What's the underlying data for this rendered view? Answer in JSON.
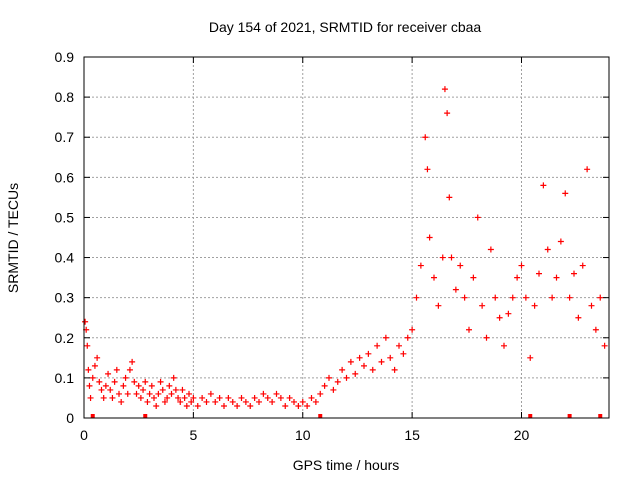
{
  "chart_data": {
    "type": "scatter",
    "title": "Day 154 of 2021, SRMTID for receiver cbaa",
    "xlabel": "GPS time / hours",
    "ylabel": "SRMTID / TECUs",
    "xlim": [
      0,
      24
    ],
    "ylim": [
      0,
      0.9
    ],
    "xticks": [
      0,
      5,
      10,
      15,
      20
    ],
    "xtick_labels": [
      "0",
      "5",
      "10",
      "15",
      "20"
    ],
    "yticks": [
      0,
      0.1,
      0.2,
      0.3,
      0.4,
      0.5,
      0.6,
      0.7,
      0.8,
      0.9
    ],
    "ytick_labels": [
      "0",
      "0.1",
      "0.2",
      "0.3",
      "0.4",
      "0.5",
      "0.6",
      "0.7",
      "0.8",
      "0.9"
    ],
    "grid": true,
    "marker": "+",
    "color": "#ff0000",
    "series": [
      {
        "name": "SRMTID",
        "points": [
          [
            0.05,
            0.24
          ],
          [
            0.1,
            0.22
          ],
          [
            0.15,
            0.18
          ],
          [
            0.2,
            0.12
          ],
          [
            0.25,
            0.08
          ],
          [
            0.3,
            0.05
          ],
          [
            0.4,
            0.1
          ],
          [
            0.5,
            0.13
          ],
          [
            0.6,
            0.15
          ],
          [
            0.7,
            0.09
          ],
          [
            0.8,
            0.07
          ],
          [
            0.9,
            0.05
          ],
          [
            1.0,
            0.08
          ],
          [
            1.1,
            0.11
          ],
          [
            1.2,
            0.07
          ],
          [
            1.3,
            0.05
          ],
          [
            1.4,
            0.09
          ],
          [
            1.5,
            0.12
          ],
          [
            1.6,
            0.06
          ],
          [
            1.7,
            0.04
          ],
          [
            1.8,
            0.08
          ],
          [
            1.9,
            0.1
          ],
          [
            2.0,
            0.06
          ],
          [
            2.1,
            0.12
          ],
          [
            2.2,
            0.14
          ],
          [
            2.3,
            0.09
          ],
          [
            2.4,
            0.06
          ],
          [
            2.5,
            0.08
          ],
          [
            2.6,
            0.05
          ],
          [
            2.7,
            0.07
          ],
          [
            2.8,
            0.09
          ],
          [
            2.9,
            0.04
          ],
          [
            3.0,
            0.06
          ],
          [
            3.1,
            0.08
          ],
          [
            3.2,
            0.05
          ],
          [
            3.3,
            0.03
          ],
          [
            3.4,
            0.06
          ],
          [
            3.5,
            0.09
          ],
          [
            3.6,
            0.07
          ],
          [
            3.7,
            0.04
          ],
          [
            3.8,
            0.05
          ],
          [
            3.9,
            0.08
          ],
          [
            4.0,
            0.06
          ],
          [
            4.1,
            0.1
          ],
          [
            4.2,
            0.07
          ],
          [
            4.3,
            0.05
          ],
          [
            4.4,
            0.04
          ],
          [
            4.5,
            0.07
          ],
          [
            4.6,
            0.05
          ],
          [
            4.7,
            0.03
          ],
          [
            4.8,
            0.06
          ],
          [
            4.9,
            0.04
          ],
          [
            5.0,
            0.05
          ],
          [
            5.2,
            0.03
          ],
          [
            5.4,
            0.05
          ],
          [
            5.6,
            0.04
          ],
          [
            5.8,
            0.06
          ],
          [
            6.0,
            0.04
          ],
          [
            6.2,
            0.05
          ],
          [
            6.4,
            0.03
          ],
          [
            6.6,
            0.05
          ],
          [
            6.8,
            0.04
          ],
          [
            7.0,
            0.03
          ],
          [
            7.2,
            0.05
          ],
          [
            7.4,
            0.04
          ],
          [
            7.6,
            0.03
          ],
          [
            7.8,
            0.05
          ],
          [
            8.0,
            0.04
          ],
          [
            8.2,
            0.06
          ],
          [
            8.4,
            0.05
          ],
          [
            8.6,
            0.04
          ],
          [
            8.8,
            0.06
          ],
          [
            9.0,
            0.05
          ],
          [
            9.2,
            0.03
          ],
          [
            9.4,
            0.05
          ],
          [
            9.6,
            0.04
          ],
          [
            9.8,
            0.03
          ],
          [
            10.0,
            0.04
          ],
          [
            10.2,
            0.03
          ],
          [
            10.4,
            0.05
          ],
          [
            10.6,
            0.04
          ],
          [
            10.8,
            0.06
          ],
          [
            11.0,
            0.08
          ],
          [
            11.2,
            0.1
          ],
          [
            11.4,
            0.07
          ],
          [
            11.6,
            0.09
          ],
          [
            11.8,
            0.12
          ],
          [
            12.0,
            0.1
          ],
          [
            12.2,
            0.14
          ],
          [
            12.4,
            0.11
          ],
          [
            12.6,
            0.15
          ],
          [
            12.8,
            0.13
          ],
          [
            13.0,
            0.16
          ],
          [
            13.2,
            0.12
          ],
          [
            13.4,
            0.18
          ],
          [
            13.6,
            0.14
          ],
          [
            13.8,
            0.2
          ],
          [
            14.0,
            0.15
          ],
          [
            14.2,
            0.12
          ],
          [
            14.4,
            0.18
          ],
          [
            14.6,
            0.16
          ],
          [
            14.8,
            0.2
          ],
          [
            15.0,
            0.22
          ],
          [
            15.2,
            0.3
          ],
          [
            15.4,
            0.38
          ],
          [
            15.6,
            0.7
          ],
          [
            15.7,
            0.62
          ],
          [
            15.8,
            0.45
          ],
          [
            16.0,
            0.35
          ],
          [
            16.2,
            0.28
          ],
          [
            16.4,
            0.4
          ],
          [
            16.5,
            0.82
          ],
          [
            16.6,
            0.76
          ],
          [
            16.7,
            0.55
          ],
          [
            16.8,
            0.4
          ],
          [
            17.0,
            0.32
          ],
          [
            17.2,
            0.38
          ],
          [
            17.4,
            0.3
          ],
          [
            17.6,
            0.22
          ],
          [
            17.8,
            0.35
          ],
          [
            18.0,
            0.5
          ],
          [
            18.2,
            0.28
          ],
          [
            18.4,
            0.2
          ],
          [
            18.6,
            0.42
          ],
          [
            18.8,
            0.3
          ],
          [
            19.0,
            0.25
          ],
          [
            19.2,
            0.18
          ],
          [
            19.4,
            0.26
          ],
          [
            19.6,
            0.3
          ],
          [
            19.8,
            0.35
          ],
          [
            20.0,
            0.38
          ],
          [
            20.2,
            0.3
          ],
          [
            20.4,
            0.15
          ],
          [
            20.6,
            0.28
          ],
          [
            20.8,
            0.36
          ],
          [
            21.0,
            0.58
          ],
          [
            21.2,
            0.42
          ],
          [
            21.4,
            0.3
          ],
          [
            21.6,
            0.35
          ],
          [
            21.8,
            0.44
          ],
          [
            22.0,
            0.56
          ],
          [
            22.2,
            0.3
          ],
          [
            22.4,
            0.36
          ],
          [
            22.6,
            0.25
          ],
          [
            22.8,
            0.38
          ],
          [
            23.0,
            0.62
          ],
          [
            23.2,
            0.28
          ],
          [
            23.4,
            0.22
          ],
          [
            23.6,
            0.3
          ],
          [
            23.8,
            0.18
          ]
        ]
      }
    ],
    "bottom_markers": [
      0.4,
      2.8,
      10.8,
      20.4,
      22.2,
      23.6
    ]
  }
}
